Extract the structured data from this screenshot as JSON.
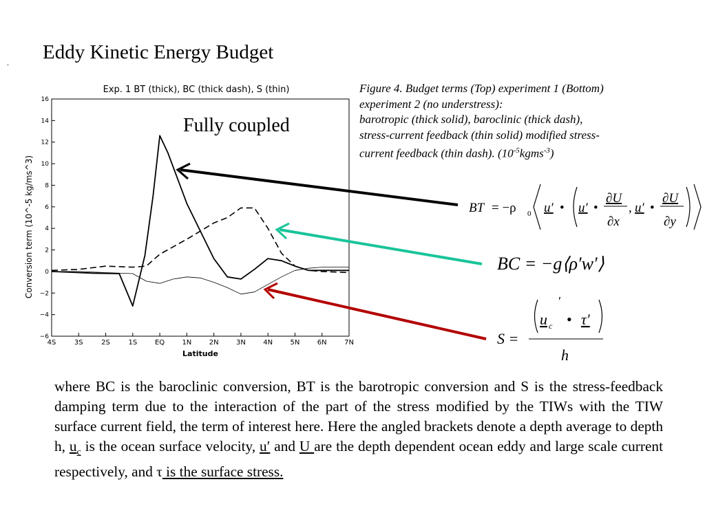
{
  "slide": {
    "marker": ".",
    "title": "Eddy Kinetic Energy Budget"
  },
  "chart_data": {
    "type": "line",
    "title": "Exp. 1 BT (thick), BC (thick dash), S (thin)",
    "xlabel": "Latitude",
    "ylabel": "Conversion term  (10^-5 kg/ms^3)",
    "annotation": "Fully coupled",
    "x_ticks": [
      "4S",
      "3S",
      "2S",
      "1S",
      "EQ",
      "1N",
      "2N",
      "3N",
      "4N",
      "5N",
      "6N",
      "7N"
    ],
    "y_ticks": [
      -6,
      -4,
      -2,
      0,
      2,
      4,
      6,
      8,
      10,
      12,
      14,
      16
    ],
    "xlim": [
      -4,
      7
    ],
    "ylim": [
      -6,
      16
    ],
    "grid": false,
    "legend": "none",
    "series": [
      {
        "name": "BT",
        "style": "thick",
        "x": [
          -4,
          -3,
          -2.5,
          -1.5,
          -1,
          -0.55,
          -0.25,
          0,
          0.3,
          1,
          2,
          2.5,
          3,
          3.5,
          4,
          4.5,
          5,
          5.5,
          6,
          7
        ],
        "y": [
          0,
          -0.1,
          -0.15,
          -0.2,
          -3.2,
          1.5,
          7,
          12.6,
          11,
          6.3,
          1.2,
          -0.5,
          -0.7,
          0.2,
          1.2,
          1,
          0.5,
          0.1,
          0.1,
          0.1
        ]
      },
      {
        "name": "BC",
        "style": "thick dash",
        "x": [
          -4,
          -3,
          -2,
          -1,
          -0.5,
          0,
          1,
          2,
          2.5,
          3,
          3.5,
          4,
          4.5,
          5,
          5.5,
          6,
          7
        ],
        "y": [
          0.1,
          0.2,
          0.5,
          0.4,
          0.5,
          1.6,
          3,
          4.5,
          5,
          5.9,
          5.9,
          4,
          1.7,
          0.5,
          0.1,
          0,
          -0.1
        ]
      },
      {
        "name": "S",
        "style": "thin",
        "x": [
          -4,
          -3,
          -2,
          -1,
          -0.5,
          0,
          0.5,
          1,
          1.5,
          2,
          2.5,
          3,
          3.5,
          4,
          4.5,
          5,
          5.5,
          6,
          7
        ],
        "y": [
          0,
          0,
          -0.1,
          -0.2,
          -0.9,
          -1.1,
          -0.7,
          -0.5,
          -0.6,
          -1,
          -1.5,
          -2.1,
          -1.9,
          -1.2,
          -0.5,
          0.1,
          0.3,
          0.4,
          0.4
        ]
      }
    ]
  },
  "caption": {
    "line1": "Figure 4. Budget terms (Top) experiment 1 (Bottom)",
    "line2": "experiment 2 (no understress):",
    "line3": "barotropic (thick solid), baroclinic (thick dash),",
    "line4": "stress-current feedback (thin solid) modified stress-",
    "line5_pre": "current feedback (thin dash).  (10",
    "line5_exp1": "-5",
    "line5_mid": "kgms",
    "line5_exp2": "-3",
    "line5_post": ")"
  },
  "equations": {
    "bt_lhs": "BT",
    "bt_eq": "= −ρ",
    "bt_sub": "0",
    "u_prime": "u′",
    "dot": "•",
    "dU": "∂U",
    "dx": "∂x",
    "dy": "∂y",
    "comma": ",",
    "bc": "BC = −g⟨ρ′w′⟩",
    "s_lhs": "S =",
    "s_uc": "u",
    "s_uc_sub": "c",
    "s_uc_prime": "′",
    "s_tau": "τ′",
    "s_h": "h"
  },
  "colors": {
    "arrow_bt": "#000000",
    "arrow_bc": "#19c49a",
    "arrow_s": "#b30000"
  },
  "body": {
    "t1": "where BC is the baroclinic conversion, BT is the barotropic conversion and S is the stress-feedback damping term due to the interaction of the part of the stress modified by the TIWs with the TIW surface current field, the term of interest here. Here the angled brackets denote a depth average to depth h, ",
    "uc": "u",
    "uc_sub": "c",
    "t2": " is the ocean surface velocity, ",
    "uprime": "u′",
    "t3": " and ",
    "U": "U ",
    "t4": "are the depth dependent ocean eddy and large scale current respectively, and ",
    "tau": "τ",
    "t5": " is the surface stress."
  }
}
